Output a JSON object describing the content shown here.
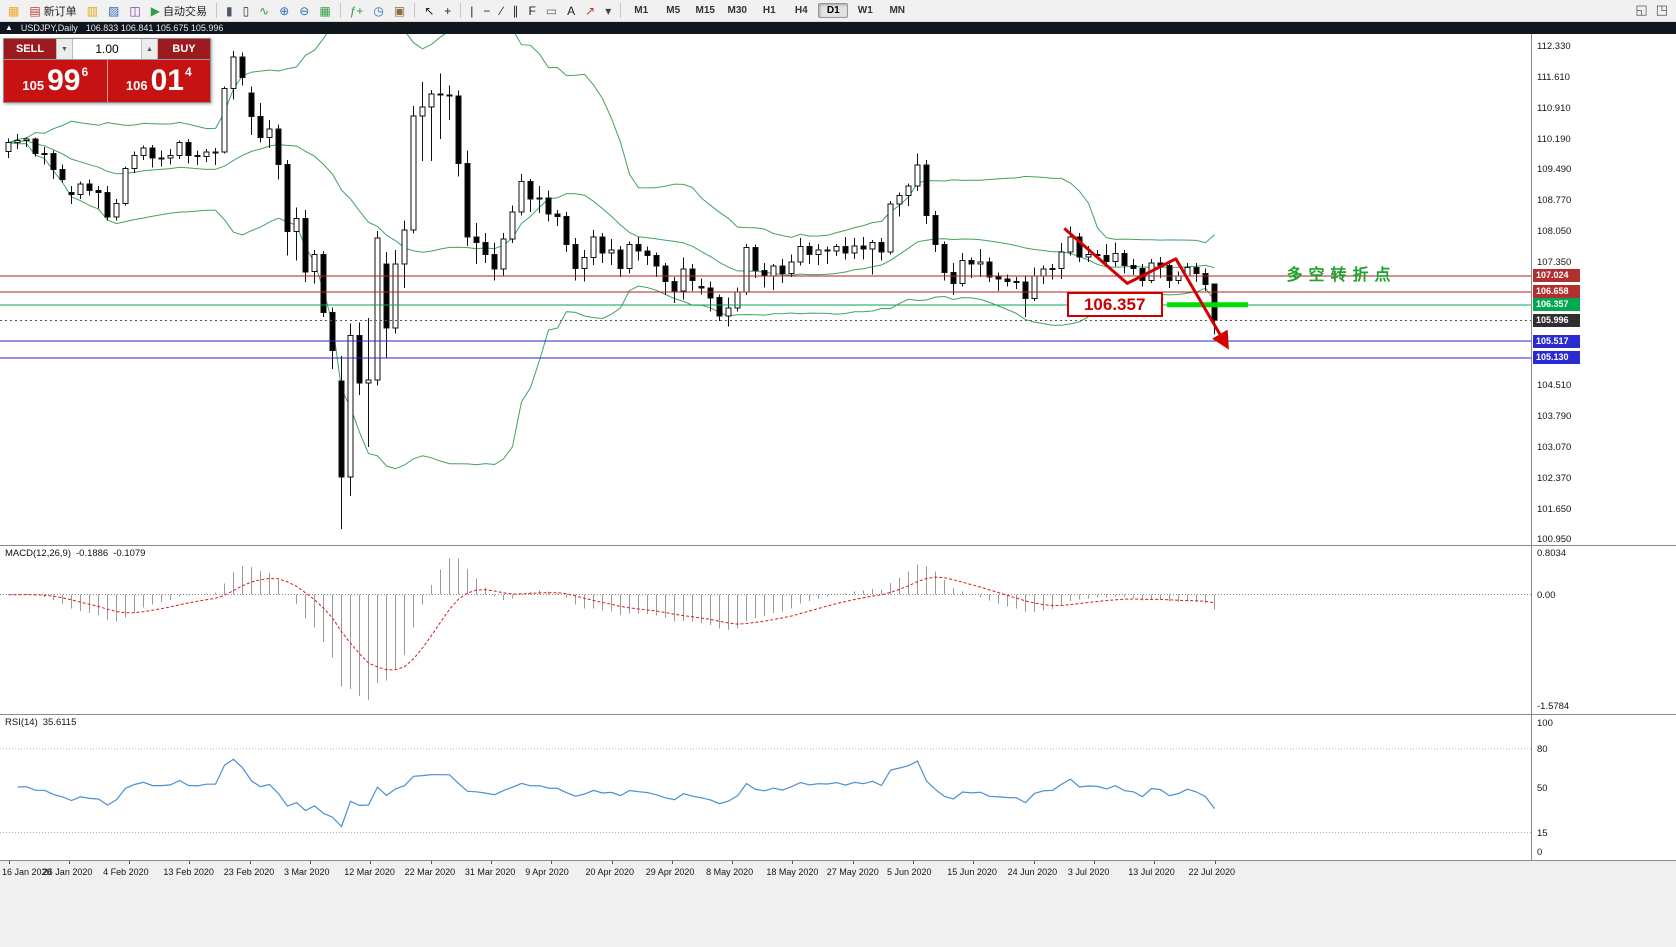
{
  "toolbar": {
    "items": [
      {
        "name": "terminal-icon",
        "glyph": "▦",
        "color": "#f4a623",
        "type": "icon"
      },
      {
        "name": "new-order-button",
        "label": "新订单",
        "glyph": "▤",
        "color": "#c0392b",
        "type": "button"
      },
      {
        "name": "new-chart-icon",
        "glyph": "▥",
        "color": "#e6a817",
        "type": "icon"
      },
      {
        "name": "profiles-icon",
        "glyph": "▨",
        "color": "#2e6fb7",
        "type": "icon"
      },
      {
        "name": "market-watch-icon",
        "glyph": "◫",
        "color": "#7d3fa8",
        "type": "icon"
      },
      {
        "name": "autotrading-button",
        "label": "自动交易",
        "glyph": "▶",
        "color": "#2f9e44",
        "type": "button"
      },
      {
        "type": "sep"
      },
      {
        "name": "bar-chart-icon",
        "glyph": "▮",
        "color": "#4a5a66",
        "type": "icon"
      },
      {
        "name": "candlestick-chart-icon",
        "glyph": "▯",
        "color": "#333333",
        "type": "icon"
      },
      {
        "name": "line-chart-icon",
        "glyph": "∿",
        "color": "#2f9e44",
        "type": "icon"
      },
      {
        "name": "zoom-in-icon",
        "glyph": "⊕",
        "color": "#2e6fb7",
        "type": "icon"
      },
      {
        "name": "zoom-out-icon",
        "glyph": "⊖",
        "color": "#2e6fb7",
        "type": "icon"
      },
      {
        "name": "tile-windows-icon",
        "glyph": "▦",
        "color": "#2f9e44",
        "type": "icon"
      },
      {
        "type": "sep"
      },
      {
        "name": "indicators-icon",
        "glyph": "ƒ+",
        "color": "#2f9e44",
        "type": "icon"
      },
      {
        "name": "periods-icon",
        "glyph": "◷",
        "color": "#2e6fb7",
        "type": "icon"
      },
      {
        "name": "templates-icon",
        "glyph": "▣",
        "color": "#8a6d3b",
        "type": "icon"
      },
      {
        "type": "sep"
      },
      {
        "name": "cursor-icon",
        "glyph": "↖",
        "color": "#222222",
        "type": "icon"
      },
      {
        "name": "crosshair-icon",
        "glyph": "+",
        "color": "#222222",
        "type": "icon"
      },
      {
        "type": "sep"
      },
      {
        "name": "vertical-line-icon",
        "glyph": "|",
        "color": "#222222",
        "type": "icon"
      },
      {
        "name": "horizontal-line-icon",
        "glyph": "−",
        "color": "#222222",
        "type": "icon"
      },
      {
        "name": "trendline-icon",
        "glyph": "∕",
        "color": "#222222",
        "type": "icon"
      },
      {
        "name": "channel-icon",
        "glyph": "∥",
        "color": "#222222",
        "type": "icon"
      },
      {
        "name": "fibonacci-icon",
        "glyph": "F",
        "color": "#222222",
        "type": "icon"
      },
      {
        "name": "shapes-icon",
        "glyph": "▭",
        "color": "#666666",
        "type": "icon"
      },
      {
        "name": "text-icon",
        "glyph": "A",
        "color": "#222222",
        "type": "icon"
      },
      {
        "name": "arrows-icon",
        "glyph": "↗",
        "color": "#c0392b",
        "type": "icon"
      },
      {
        "name": "dropdown-arrow-icon",
        "glyph": "▾",
        "color": "#444444",
        "type": "icon"
      },
      {
        "type": "sep"
      }
    ],
    "timeframes": [
      "M1",
      "M5",
      "M15",
      "M30",
      "H1",
      "H4",
      "D1",
      "W1",
      "MN"
    ],
    "active_timeframe": "D1",
    "right_icons": [
      {
        "name": "window-layout-icon",
        "glyph": "◱",
        "color": "#555555"
      },
      {
        "name": "new-window-icon",
        "glyph": "◳",
        "color": "#555555"
      }
    ]
  },
  "symbol_strip": {
    "collapse_glyph": "▲",
    "title": "USDJPY,Daily",
    "ohlc": "106.833 106.841 105.675 105.996"
  },
  "trade_panel": {
    "sell_label": "SELL",
    "buy_label": "BUY",
    "volume": "1.00",
    "spin_down": "▼",
    "spin_up": "▲",
    "bid_small": "105",
    "bid_big": "99",
    "bid_sup": "6",
    "ask_small": "106",
    "ask_big": "01",
    "ask_sup": "4"
  },
  "macd": {
    "label": "MACD(12,26,9)",
    "value_main": "-0.1886",
    "value_signal": "-0.1079",
    "axis_top": "0.8034",
    "axis_zero": "0.00",
    "axis_bottom": "-1.5784"
  },
  "rsi": {
    "label": "RSI(14)",
    "value": "35.6115",
    "axis": [
      100,
      80,
      50,
      15,
      0
    ],
    "levels": [
      80,
      15
    ]
  },
  "chart_data": {
    "type": "candlestick",
    "symbol": "USDJPY",
    "period": "Daily",
    "bollinger": {
      "period": 20,
      "deviation": 2
    },
    "colors": {
      "bollinger": "#43a35f",
      "bull": "#ffffff",
      "bear": "#000000",
      "candle_outline": "#111111",
      "macd_hist": "#9a9a9a",
      "macd_signal": "#cf2020",
      "rsi_line": "#4a90d2",
      "annotation_red": "#d40000",
      "thick_segment": "#00dd00",
      "turning_text": "#1fa32e"
    },
    "y_axis": [
      112.33,
      111.61,
      110.91,
      110.19,
      109.49,
      108.77,
      108.05,
      107.35,
      104.51,
      103.79,
      103.07,
      102.37,
      101.65,
      100.95
    ],
    "x_labels": [
      "16 Jan 2020",
      "26 Jan 2020",
      "4 Feb 2020",
      "13 Feb 2020",
      "23 Feb 2020",
      "3 Mar 2020",
      "12 Mar 2020",
      "22 Mar 2020",
      "31 Mar 2020",
      "9 Apr 2020",
      "20 Apr 2020",
      "29 Apr 2020",
      "8 May 2020",
      "18 May 2020",
      "27 May 2020",
      "5 Jun 2020",
      "15 Jun 2020",
      "24 Jun 2020",
      "3 Jul 2020",
      "13 Jul 2020",
      "22 Jul 2020"
    ],
    "price_lines": [
      {
        "price": 107.024,
        "color": "#b22222",
        "style": "solid",
        "tag_bg": "#b03030"
      },
      {
        "price": 106.658,
        "color": "#b22222",
        "style": "solid",
        "tag_bg": "#b03030"
      },
      {
        "price": 106.357,
        "color": "#00a84f",
        "style": "solid",
        "tag_bg": "#00a84f"
      },
      {
        "price": 105.996,
        "color": "#555555",
        "style": "dotted",
        "tag_bg": "#2f2f2f"
      },
      {
        "price": 105.517,
        "color": "#2525cc",
        "style": "solid",
        "tag_bg": "#2a2ad0"
      },
      {
        "price": 105.13,
        "color": "#2525cc",
        "style": "solid",
        "tag_bg": "#2a2ad0"
      }
    ],
    "annotations": {
      "zigzag_points": [
        [
          117.3,
          108.12
        ],
        [
          124.3,
          106.85
        ],
        [
          129.7,
          107.42
        ],
        [
          135.3,
          105.43
        ]
      ],
      "thick_segment": {
        "price": 106.357,
        "i1": 129,
        "i2": 138
      },
      "price_label": {
        "text": "106.357",
        "price": 106.357,
        "right_i": 128.3
      },
      "turning_text": {
        "text": "多空转折点",
        "i": 142,
        "price": 107.16
      }
    },
    "candles": [
      [
        109.9,
        110.2,
        109.75,
        110.1
      ],
      [
        110.1,
        110.3,
        109.95,
        110.15
      ],
      [
        110.15,
        110.22,
        110.0,
        110.18
      ],
      [
        110.18,
        110.22,
        109.78,
        109.85
      ],
      [
        109.85,
        110.0,
        109.6,
        109.85
      ],
      [
        109.85,
        109.92,
        109.26,
        109.48
      ],
      [
        109.48,
        109.6,
        109.18,
        109.25
      ],
      [
        108.95,
        109.1,
        108.68,
        108.9
      ],
      [
        108.9,
        109.2,
        108.8,
        109.15
      ],
      [
        109.15,
        109.25,
        108.88,
        109.0
      ],
      [
        109.0,
        109.1,
        108.58,
        108.95
      ],
      [
        108.95,
        109.1,
        108.3,
        108.38
      ],
      [
        108.38,
        108.8,
        108.3,
        108.7
      ],
      [
        108.7,
        109.55,
        108.65,
        109.5
      ],
      [
        109.5,
        109.9,
        109.4,
        109.8
      ],
      [
        109.8,
        110.03,
        109.7,
        109.98
      ],
      [
        109.98,
        110.05,
        109.53,
        109.75
      ],
      [
        109.75,
        109.92,
        109.55,
        109.75
      ],
      [
        109.75,
        109.95,
        109.6,
        109.8
      ],
      [
        109.8,
        110.15,
        109.72,
        110.1
      ],
      [
        110.1,
        110.18,
        109.62,
        109.8
      ],
      [
        109.8,
        109.92,
        109.58,
        109.78
      ],
      [
        109.78,
        109.95,
        109.65,
        109.88
      ],
      [
        109.88,
        109.98,
        109.58,
        109.88
      ],
      [
        109.88,
        111.4,
        109.85,
        111.35
      ],
      [
        111.35,
        112.22,
        111.1,
        112.08
      ],
      [
        112.08,
        112.18,
        111.42,
        111.6
      ],
      [
        111.25,
        111.4,
        110.28,
        110.7
      ],
      [
        110.7,
        111.02,
        110.1,
        110.22
      ],
      [
        110.22,
        110.62,
        109.98,
        110.42
      ],
      [
        110.42,
        110.52,
        109.25,
        109.6
      ],
      [
        109.6,
        109.7,
        107.5,
        108.05
      ],
      [
        108.05,
        108.6,
        107.38,
        108.35
      ],
      [
        108.35,
        108.55,
        106.88,
        107.12
      ],
      [
        107.12,
        107.62,
        106.85,
        107.52
      ],
      [
        107.52,
        107.6,
        106.08,
        106.18
      ],
      [
        106.18,
        106.3,
        104.88,
        105.3
      ],
      [
        104.6,
        105.18,
        101.18,
        102.38
      ],
      [
        102.38,
        105.92,
        101.95,
        105.65
      ],
      [
        105.65,
        105.95,
        104.28,
        104.55
      ],
      [
        104.55,
        106.05,
        103.08,
        104.62
      ],
      [
        104.62,
        108.06,
        104.5,
        107.9
      ],
      [
        107.3,
        107.58,
        105.12,
        105.82
      ],
      [
        105.82,
        107.62,
        105.7,
        107.3
      ],
      [
        107.3,
        108.3,
        106.75,
        108.08
      ],
      [
        108.08,
        110.95,
        108.0,
        110.72
      ],
      [
        110.72,
        111.5,
        109.68,
        110.92
      ],
      [
        110.92,
        111.32,
        109.68,
        111.22
      ],
      [
        111.22,
        111.7,
        110.18,
        111.2
      ],
      [
        111.2,
        111.42,
        110.62,
        111.18
      ],
      [
        111.18,
        111.3,
        109.32,
        109.62
      ],
      [
        109.62,
        109.92,
        107.72,
        107.92
      ],
      [
        107.92,
        108.25,
        107.3,
        107.8
      ],
      [
        107.8,
        108.02,
        107.32,
        107.52
      ],
      [
        107.52,
        107.8,
        106.92,
        107.18
      ],
      [
        107.18,
        108.02,
        107.02,
        107.88
      ],
      [
        107.88,
        108.65,
        107.78,
        108.5
      ],
      [
        108.5,
        109.38,
        108.42,
        109.2
      ],
      [
        109.2,
        109.26,
        108.5,
        108.8
      ],
      [
        108.8,
        109.1,
        108.48,
        108.82
      ],
      [
        108.82,
        109.0,
        108.28,
        108.45
      ],
      [
        108.45,
        108.55,
        108.18,
        108.4
      ],
      [
        108.4,
        108.5,
        107.58,
        107.75
      ],
      [
        107.75,
        107.9,
        106.92,
        107.2
      ],
      [
        107.2,
        107.62,
        106.9,
        107.45
      ],
      [
        107.45,
        108.08,
        107.28,
        107.92
      ],
      [
        107.92,
        108.02,
        107.32,
        107.55
      ],
      [
        107.55,
        107.88,
        107.28,
        107.62
      ],
      [
        107.62,
        107.72,
        107.0,
        107.2
      ],
      [
        107.2,
        107.82,
        107.08,
        107.75
      ],
      [
        107.75,
        107.92,
        107.38,
        107.6
      ],
      [
        107.6,
        107.7,
        107.28,
        107.5
      ],
      [
        107.5,
        107.56,
        107.0,
        107.25
      ],
      [
        107.25,
        107.32,
        106.58,
        106.9
      ],
      [
        106.9,
        107.0,
        106.4,
        106.68
      ],
      [
        106.68,
        107.45,
        106.48,
        107.18
      ],
      [
        107.18,
        107.3,
        106.68,
        106.92
      ],
      [
        106.78,
        106.96,
        106.6,
        106.75
      ],
      [
        106.75,
        106.9,
        106.2,
        106.52
      ],
      [
        106.52,
        106.6,
        105.98,
        106.1
      ],
      [
        106.1,
        106.52,
        105.86,
        106.28
      ],
      [
        106.28,
        106.76,
        106.2,
        106.65
      ],
      [
        106.65,
        107.76,
        106.58,
        107.68
      ],
      [
        107.68,
        107.75,
        106.98,
        107.15
      ],
      [
        107.15,
        107.32,
        106.76,
        107.02
      ],
      [
        107.02,
        107.3,
        106.7,
        107.25
      ],
      [
        107.25,
        107.42,
        106.86,
        107.08
      ],
      [
        107.08,
        107.52,
        107.0,
        107.35
      ],
      [
        107.35,
        107.9,
        107.26,
        107.7
      ],
      [
        107.7,
        107.8,
        107.3,
        107.52
      ],
      [
        107.52,
        107.76,
        107.28,
        107.62
      ],
      [
        107.62,
        107.7,
        107.3,
        107.6
      ],
      [
        107.6,
        107.76,
        107.48,
        107.7
      ],
      [
        107.7,
        107.92,
        107.4,
        107.55
      ],
      [
        107.55,
        107.9,
        107.42,
        107.72
      ],
      [
        107.72,
        107.92,
        107.4,
        107.65
      ],
      [
        107.65,
        107.85,
        107.06,
        107.8
      ],
      [
        107.8,
        107.9,
        107.38,
        107.58
      ],
      [
        107.58,
        108.75,
        107.52,
        108.68
      ],
      [
        108.68,
        108.95,
        108.4,
        108.88
      ],
      [
        108.88,
        109.16,
        108.64,
        109.1
      ],
      [
        109.1,
        109.85,
        108.98,
        109.58
      ],
      [
        109.58,
        109.7,
        108.22,
        108.42
      ],
      [
        108.42,
        108.52,
        107.58,
        107.75
      ],
      [
        107.75,
        107.82,
        106.92,
        107.1
      ],
      [
        107.1,
        107.32,
        106.58,
        106.85
      ],
      [
        106.85,
        107.55,
        106.78,
        107.38
      ],
      [
        107.38,
        107.45,
        106.98,
        107.3
      ],
      [
        107.3,
        107.65,
        107.0,
        107.35
      ],
      [
        107.35,
        107.45,
        106.88,
        107.0
      ],
      [
        107.0,
        107.1,
        106.68,
        106.95
      ],
      [
        106.95,
        107.06,
        106.78,
        106.9
      ],
      [
        106.9,
        107.0,
        106.72,
        106.88
      ],
      [
        106.88,
        107.02,
        106.08,
        106.5
      ],
      [
        106.5,
        107.22,
        106.45,
        107.02
      ],
      [
        107.02,
        107.26,
        106.84,
        107.18
      ],
      [
        107.18,
        107.3,
        106.94,
        107.2
      ],
      [
        107.2,
        107.78,
        106.95,
        107.58
      ],
      [
        107.58,
        108.16,
        107.5,
        107.92
      ],
      [
        107.92,
        108.02,
        107.34,
        107.46
      ],
      [
        107.46,
        107.72,
        107.35,
        107.52
      ],
      [
        107.52,
        107.62,
        107.4,
        107.5
      ],
      [
        107.5,
        107.76,
        107.24,
        107.36
      ],
      [
        107.36,
        107.8,
        107.24,
        107.54
      ],
      [
        107.54,
        107.62,
        107.08,
        107.26
      ],
      [
        107.26,
        107.42,
        107.04,
        107.2
      ],
      [
        107.2,
        107.3,
        106.78,
        106.92
      ],
      [
        106.92,
        107.42,
        106.86,
        107.32
      ],
      [
        107.32,
        107.46,
        106.98,
        107.26
      ],
      [
        107.26,
        107.32,
        106.74,
        106.92
      ],
      [
        106.92,
        107.12,
        106.84,
        107.02
      ],
      [
        107.02,
        107.32,
        106.94,
        107.22
      ],
      [
        107.22,
        107.32,
        106.88,
        107.08
      ],
      [
        107.08,
        107.2,
        106.68,
        106.83
      ],
      [
        106.833,
        106.841,
        105.675,
        105.996
      ]
    ]
  }
}
